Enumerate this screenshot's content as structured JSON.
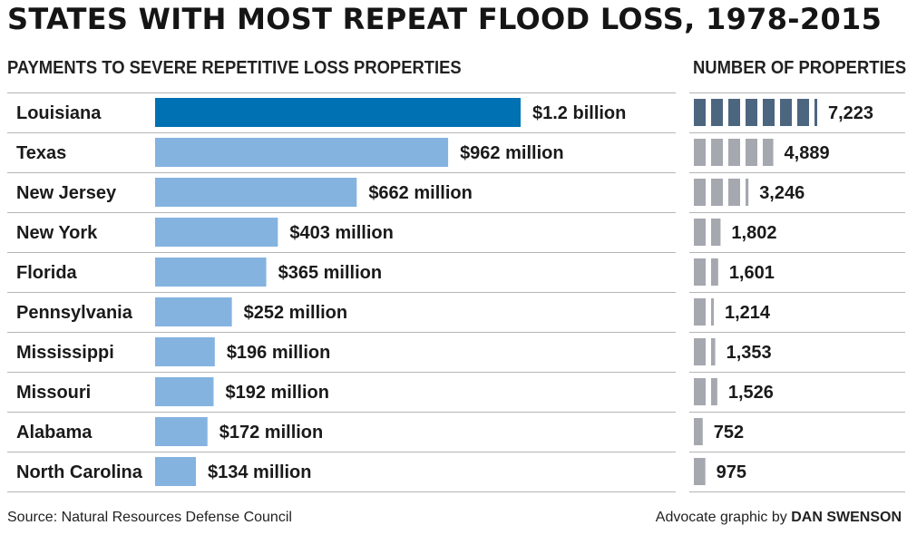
{
  "title": "STATES WITH MOST REPEAT FLOOD LOSS, 1978-2015",
  "left_header": "PAYMENTS TO SEVERE REPETITIVE LOSS PROPERTIES",
  "right_header": "NUMBER OF PROPERTIES",
  "footer": {
    "source": "Source: Natural Resources Defense Council",
    "credit_prefix": "Advocate graphic by",
    "credit_name": "DAN SWENSON"
  },
  "colors": {
    "highlight_bar": "#0071b3",
    "bar": "#85b3e0",
    "highlight_count": "#4d6680",
    "count": "#a6a8b0",
    "rule": "#b5b5b5"
  },
  "chart_data": [
    {
      "type": "bar",
      "orientation": "horizontal",
      "title": "PAYMENTS TO SEVERE REPETITIVE LOSS PROPERTIES",
      "unit": "USD millions",
      "categories": [
        "Louisiana",
        "Texas",
        "New Jersey",
        "New York",
        "Florida",
        "Pennsylvania",
        "Mississippi",
        "Missouri",
        "Alabama",
        "North Carolina"
      ],
      "values": [
        1200,
        962,
        662,
        403,
        365,
        252,
        196,
        192,
        172,
        134
      ],
      "labels": [
        "$1.2 billion",
        "$962 million",
        "$662 million",
        "$403 million",
        "$365 million",
        "$252 million",
        "$196 million",
        "$192 million",
        "$172 million",
        "$134 million"
      ],
      "highlight_index": 0
    },
    {
      "type": "bar",
      "orientation": "horizontal",
      "title": "NUMBER OF PROPERTIES",
      "categories": [
        "Louisiana",
        "Texas",
        "New Jersey",
        "New York",
        "Florida",
        "Pennsylvania",
        "Mississippi",
        "Missouri",
        "Alabama",
        "North Carolina"
      ],
      "values": [
        7223,
        4889,
        3246,
        1802,
        1601,
        1214,
        1353,
        1526,
        752,
        975
      ],
      "labels": [
        "7,223",
        "4,889",
        "3,246",
        "1,802",
        "1,601",
        "1,214",
        "1,353",
        "1,526",
        "752",
        "975"
      ],
      "unit_per_block": 1000,
      "highlight_index": 0
    }
  ]
}
